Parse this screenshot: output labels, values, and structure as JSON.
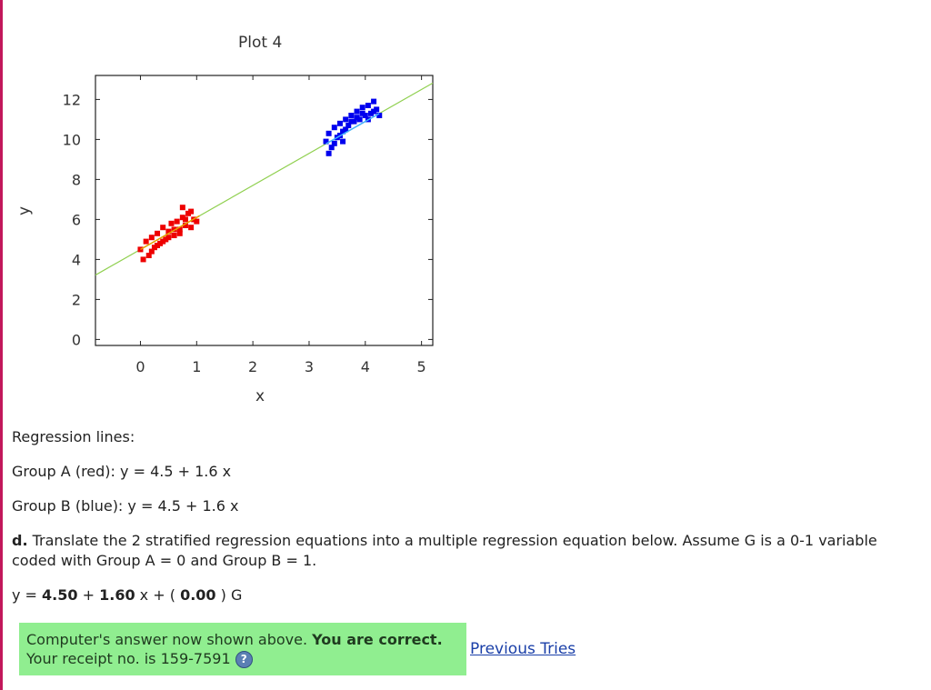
{
  "chart_data": {
    "type": "scatter",
    "title": "Plot 4",
    "xlabel": "x",
    "ylabel": "y",
    "xlim": [
      -0.8,
      5.2
    ],
    "ylim": [
      -0.3,
      13.2
    ],
    "x_ticks": [
      "0",
      "1",
      "2",
      "3",
      "4",
      "5"
    ],
    "y_ticks": [
      "0",
      "2",
      "4",
      "6",
      "8",
      "10",
      "12"
    ],
    "series": [
      {
        "color": "#ee0000",
        "points": [
          [
            0.0,
            4.5
          ],
          [
            0.1,
            4.9
          ],
          [
            0.15,
            4.2
          ],
          [
            0.2,
            5.1
          ],
          [
            0.25,
            4.6
          ],
          [
            0.3,
            5.3
          ],
          [
            0.35,
            4.8
          ],
          [
            0.4,
            5.6
          ],
          [
            0.45,
            5.0
          ],
          [
            0.5,
            5.4
          ],
          [
            0.55,
            5.8
          ],
          [
            0.6,
            5.2
          ],
          [
            0.65,
            5.9
          ],
          [
            0.7,
            5.5
          ],
          [
            0.75,
            6.1
          ],
          [
            0.8,
            5.7
          ],
          [
            0.85,
            6.3
          ],
          [
            0.9,
            5.6
          ],
          [
            0.95,
            6.0
          ],
          [
            1.0,
            5.9
          ],
          [
            0.05,
            4.0
          ],
          [
            0.2,
            4.4
          ],
          [
            0.3,
            4.7
          ],
          [
            0.4,
            4.9
          ],
          [
            0.5,
            5.1
          ],
          [
            0.6,
            5.5
          ],
          [
            0.7,
            5.3
          ],
          [
            0.8,
            6.0
          ],
          [
            0.9,
            6.4
          ],
          [
            0.75,
            6.6
          ]
        ]
      },
      {
        "color": "#0000ee",
        "points": [
          [
            3.3,
            9.9
          ],
          [
            3.35,
            10.3
          ],
          [
            3.4,
            9.6
          ],
          [
            3.45,
            10.6
          ],
          [
            3.5,
            10.1
          ],
          [
            3.55,
            10.8
          ],
          [
            3.6,
            10.4
          ],
          [
            3.65,
            11.0
          ],
          [
            3.7,
            10.7
          ],
          [
            3.75,
            11.2
          ],
          [
            3.8,
            10.9
          ],
          [
            3.85,
            11.4
          ],
          [
            3.9,
            11.0
          ],
          [
            3.95,
            11.6
          ],
          [
            4.0,
            11.2
          ],
          [
            4.05,
            11.7
          ],
          [
            4.1,
            11.3
          ],
          [
            4.15,
            11.9
          ],
          [
            4.2,
            11.5
          ],
          [
            4.25,
            11.2
          ],
          [
            3.35,
            9.3
          ],
          [
            3.45,
            9.8
          ],
          [
            3.55,
            10.2
          ],
          [
            3.65,
            10.5
          ],
          [
            3.75,
            10.9
          ],
          [
            3.85,
            11.1
          ],
          [
            3.95,
            11.3
          ],
          [
            4.05,
            11.0
          ],
          [
            4.15,
            11.4
          ],
          [
            3.6,
            9.9
          ]
        ]
      }
    ],
    "fit_lines": [
      {
        "color": "#90d050",
        "intercept": 4.5,
        "slope": 1.6,
        "x_range": [
          -0.8,
          5.2
        ]
      },
      {
        "color": "#e8a000",
        "intercept": 4.5,
        "slope": 1.6,
        "x_range": [
          0.0,
          1.05
        ]
      },
      {
        "color": "#40b0ff",
        "intercept": 4.5,
        "slope": 1.6,
        "x_range": [
          3.3,
          4.25
        ]
      }
    ]
  },
  "content": {
    "regression_heading": "Regression lines:",
    "group_a": "Group A (red): y = 4.5 + 1.6 x",
    "group_b": "Group B (blue): y = 4.5 + 1.6 x",
    "question_label": "d.",
    "question_text": " Translate the 2 stratified regression equations into a multiple regression equation below. Assume G is a 0-1 variable coded with Group A = 0 and Group B = 1.",
    "equation": {
      "prefix": "y = ",
      "intercept": "4.50",
      "plus1": " + ",
      "slope": "1.60",
      "mid": " x + ( ",
      "g_coef": "0.00",
      "suffix": " ) G"
    },
    "answer": {
      "line1_normal": "Computer's answer now shown above. ",
      "line1_bold": "You are correct.",
      "line2": "Your receipt no. is 159-7591 ",
      "help_icon": "?"
    },
    "previous_tries": "Previous Tries"
  }
}
